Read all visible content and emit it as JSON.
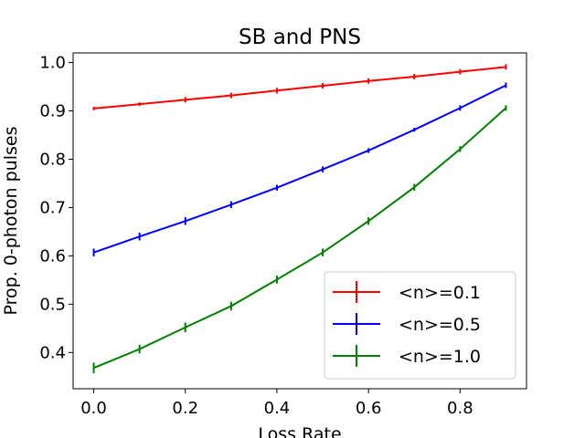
{
  "chart_data": {
    "type": "line",
    "title": "SB and PNS",
    "xlabel": "Loss Rate",
    "ylabel": "Prop. 0-photon pulses",
    "xlim": [
      -0.045,
      0.945
    ],
    "ylim": [
      0.325,
      1.02
    ],
    "xticks": [
      0.0,
      0.2,
      0.4,
      0.6,
      0.8
    ],
    "xtick_labels": [
      "0.0",
      "0.2",
      "0.4",
      "0.6",
      "0.8"
    ],
    "yticks": [
      0.4,
      0.5,
      0.6,
      0.7,
      0.8,
      0.9,
      1.0
    ],
    "ytick_labels": [
      "0.4",
      "0.5",
      "0.6",
      "0.7",
      "0.8",
      "0.9",
      "1.0"
    ],
    "grid": false,
    "legend_position": "lower-right",
    "x": [
      0.0,
      0.1,
      0.2,
      0.3,
      0.4,
      0.5,
      0.6,
      0.7,
      0.8,
      0.9
    ],
    "series": [
      {
        "name": "<n>=0.1",
        "color": "#ff0000",
        "values": [
          0.905,
          0.914,
          0.923,
          0.932,
          0.942,
          0.952,
          0.962,
          0.971,
          0.981,
          0.991
        ],
        "errors": [
          0.002,
          0.002,
          0.0,
          0.0,
          0.0,
          0.0,
          0.0,
          0.0,
          0.0,
          0.0
        ]
      },
      {
        "name": "<n>=0.5",
        "color": "#0000ff",
        "values": [
          0.607,
          0.64,
          0.672,
          0.706,
          0.741,
          0.779,
          0.818,
          0.861,
          0.906,
          0.953
        ],
        "errors": [
          0.008,
          0.008,
          0.008,
          0.007,
          0.006,
          0.006,
          0.005,
          0.004,
          0.0,
          0.0
        ]
      },
      {
        "name": "<n>=1.0",
        "color": "#008000",
        "values": [
          0.368,
          0.407,
          0.452,
          0.496,
          0.551,
          0.607,
          0.672,
          0.742,
          0.821,
          0.906
        ],
        "errors": [
          0.011,
          0.009,
          0.01,
          0.009,
          0.008,
          0.008,
          0.008,
          0.007,
          0.006,
          0.0
        ]
      }
    ]
  }
}
